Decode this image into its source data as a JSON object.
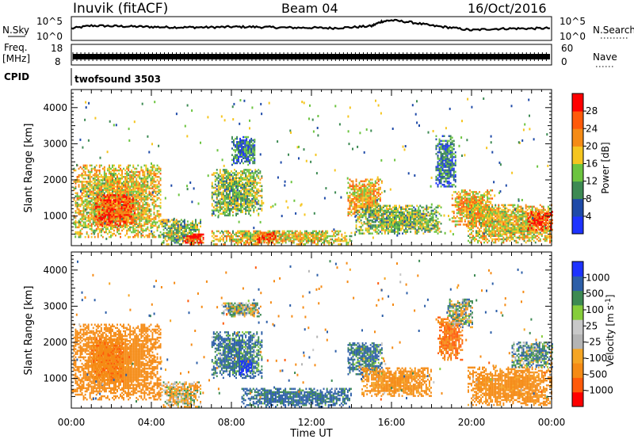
{
  "header": {
    "station": "Inuvik (fitACF)",
    "beam": "Beam 04",
    "date": "16/Oct/2016"
  },
  "top_panels": {
    "nsky": {
      "label": "N.Sky",
      "tick_high": "10^5",
      "tick_low": "10^0"
    },
    "nsearch": {
      "label": "N.Search",
      "tick_high": "10^5",
      "tick_low": "10^0"
    },
    "freq": {
      "label_line1": "Freq.",
      "label_line2": "[MHz]",
      "tick_high": "18",
      "tick_low": "8"
    },
    "nave": {
      "label": "Nave",
      "tick_high": "60",
      "tick_low": "0"
    },
    "cpid": {
      "label": "CPID",
      "program": "twofsound 3503"
    }
  },
  "colors": {
    "power_scale": [
      "#1d33ff",
      "#1e4aa8",
      "#3d8a53",
      "#6cc43f",
      "#f5c51f",
      "#f58b15",
      "#ff5a0a",
      "#ff0000"
    ],
    "velocity_scale": [
      "#ff0000",
      "#ff5a0a",
      "#f58b15",
      "#f5a524",
      "#b4b4b4",
      "#c8c8c8",
      "#86cd3b",
      "#3d8a53",
      "#2d5fa8",
      "#1d33ff"
    ]
  },
  "chart_data": [
    {
      "type": "line",
      "name": "status",
      "series": [
        {
          "name": "N.Sky",
          "x": [
            "00:00",
            "01:00",
            "02:00",
            "03:00",
            "04:00",
            "05:00",
            "06:00",
            "07:00",
            "08:00",
            "09:00",
            "10:00",
            "11:00",
            "12:00",
            "13:00",
            "14:00",
            "15:00",
            "15:30",
            "16:00",
            "17:00",
            "18:00",
            "19:00",
            "20:00",
            "21:00",
            "22:00",
            "23:00",
            "24:00"
          ],
          "values": [
            2.5,
            3.2,
            3.1,
            3.0,
            2.9,
            2.8,
            2.8,
            2.8,
            2.9,
            2.9,
            2.8,
            2.7,
            2.7,
            2.6,
            2.8,
            3.1,
            4.2,
            4.5,
            4.0,
            3.2,
            2.7,
            2.1,
            2.4,
            2.5,
            2.5,
            2.6
          ]
        },
        {
          "name": "Freq.",
          "x": [
            "00:00",
            "24:00"
          ],
          "values": [
            10.2,
            10.2
          ]
        }
      ],
      "yscale": "log",
      "ylim": [
        1,
        100000
      ],
      "freq_ylim": [
        8,
        18
      ],
      "nave_ylim": [
        0,
        60
      ]
    },
    {
      "type": "heatmap",
      "name": "power",
      "xlabel": "Time UT",
      "ylabel": "Slant Range [km]",
      "colorbar_label": "Power [dB]",
      "colorbar_ticks": [
        "28",
        "24",
        "20",
        "16",
        "12",
        "8",
        "4"
      ],
      "clim": [
        0,
        32
      ],
      "x_ticks": [
        "00:00",
        "04:00",
        "08:00",
        "12:00",
        "16:00",
        "20:00",
        "00:00"
      ],
      "xlim_hours": [
        0,
        24
      ],
      "y_ticks": [
        "4000",
        "3000",
        "2000",
        "1000"
      ],
      "ylim": [
        180,
        4500
      ],
      "regions": [
        {
          "t": [
            0.1,
            4.5
          ],
          "r": [
            400,
            2400
          ],
          "v": 18
        },
        {
          "t": [
            1.2,
            3.2
          ],
          "r": [
            700,
            1600
          ],
          "v": 26
        },
        {
          "t": [
            4.5,
            6.5
          ],
          "r": [
            200,
            900
          ],
          "v": 14
        },
        {
          "t": [
            5.6,
            6.6
          ],
          "r": [
            200,
            500
          ],
          "v": 28
        },
        {
          "t": [
            7.0,
            9.5
          ],
          "r": [
            1000,
            2300
          ],
          "v": 14
        },
        {
          "t": [
            8.0,
            9.2
          ],
          "r": [
            2400,
            3200
          ],
          "v": 8
        },
        {
          "t": [
            7.0,
            14.0
          ],
          "r": [
            200,
            600
          ],
          "v": 18
        },
        {
          "t": [
            9.2,
            10.2
          ],
          "r": [
            250,
            550
          ],
          "v": 28
        },
        {
          "t": [
            13.8,
            15.5
          ],
          "r": [
            1000,
            2000
          ],
          "v": 20
        },
        {
          "t": [
            14.2,
            18.5
          ],
          "r": [
            500,
            1300
          ],
          "v": 14
        },
        {
          "t": [
            18.2,
            19.2
          ],
          "r": [
            1800,
            3200
          ],
          "v": 8
        },
        {
          "t": [
            19.0,
            21.0
          ],
          "r": [
            700,
            1700
          ],
          "v": 20
        },
        {
          "t": [
            19.8,
            24.0
          ],
          "r": [
            250,
            1300
          ],
          "v": 18
        },
        {
          "t": [
            22.8,
            24.0
          ],
          "r": [
            600,
            1100
          ],
          "v": 28
        }
      ]
    },
    {
      "type": "heatmap",
      "name": "velocity",
      "xlabel": "Time UT",
      "ylabel": "Slant Range [km]",
      "colorbar_label": "Velocity [m s^-1]",
      "colorbar_ticks": [
        "1000",
        "500",
        "100",
        "25",
        "-25",
        "-100",
        "-500",
        "-1000"
      ],
      "clim": [
        -1000,
        1000
      ],
      "x_ticks": [
        "00:00",
        "04:00",
        "08:00",
        "12:00",
        "16:00",
        "20:00",
        "00:00"
      ],
      "xlim_hours": [
        0,
        24
      ],
      "y_ticks": [
        "4000",
        "3000",
        "2000",
        "1000"
      ],
      "ylim": [
        180,
        4500
      ],
      "regions": [
        {
          "t": [
            0.1,
            4.5
          ],
          "r": [
            400,
            2500
          ],
          "v": -250
        },
        {
          "t": [
            1.0,
            2.6
          ],
          "r": [
            900,
            2100
          ],
          "v": -420
        },
        {
          "t": [
            4.5,
            6.5
          ],
          "r": [
            200,
            900
          ],
          "v": -60
        },
        {
          "t": [
            7.0,
            9.5
          ],
          "r": [
            1000,
            2300
          ],
          "v": 120
        },
        {
          "t": [
            8.4,
            9.0
          ],
          "r": [
            1100,
            1500
          ],
          "v": 700
        },
        {
          "t": [
            7.5,
            9.5
          ],
          "r": [
            2700,
            3100
          ],
          "v": 0
        },
        {
          "t": [
            8.5,
            14.0
          ],
          "r": [
            200,
            700
          ],
          "v": 150
        },
        {
          "t": [
            13.8,
            15.5
          ],
          "r": [
            1100,
            2000
          ],
          "v": 120
        },
        {
          "t": [
            14.5,
            18.0
          ],
          "r": [
            500,
            1300
          ],
          "v": -180
        },
        {
          "t": [
            18.3,
            19.5
          ],
          "r": [
            1500,
            2700
          ],
          "v": -500
        },
        {
          "t": [
            18.8,
            20.0
          ],
          "r": [
            2400,
            3200
          ],
          "v": 0
        },
        {
          "t": [
            19.8,
            24.0
          ],
          "r": [
            250,
            1300
          ],
          "v": -200
        },
        {
          "t": [
            22.0,
            24.0
          ],
          "r": [
            1300,
            2000
          ],
          "v": 60
        }
      ]
    }
  ]
}
